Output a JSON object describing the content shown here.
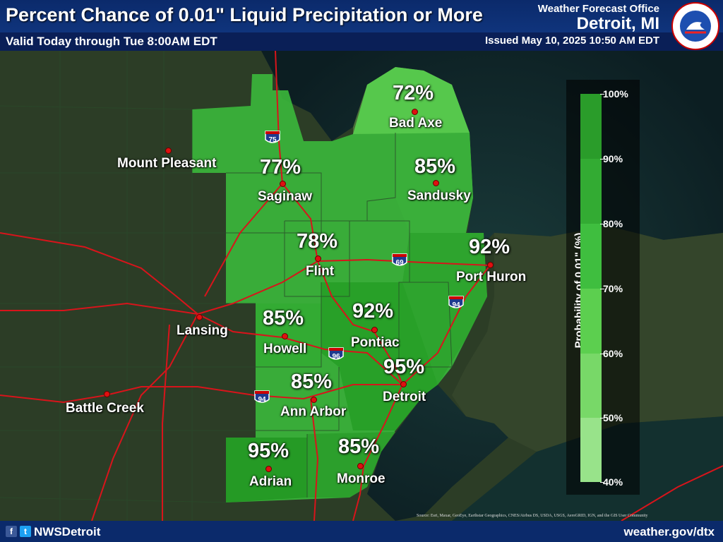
{
  "header": {
    "title": "Percent Chance of 0.01\" Liquid Precipitation or More",
    "valid": "Valid Today through Tue 8:00AM EDT",
    "office": "Weather Forecast Office",
    "city": "Detroit, MI",
    "issued": "Issued May 10, 2025 10:50 AM EDT",
    "logo_text": "NATIONAL WEATHER SERVICE"
  },
  "footer": {
    "handle": "NWSDetroit",
    "url": "weather.gov/dtx",
    "attribution": "Source: Esri, Maxar, GeoEye, Earthstar Geographics, CNES/Airbus DS, USDA, USGS, AeroGRID, IGN, and the GIS User Community"
  },
  "forecast_points": [
    {
      "city": "Bad Axe",
      "pct": "72%"
    },
    {
      "city": "Saginaw",
      "pct": "77%"
    },
    {
      "city": "Sandusky",
      "pct": "85%"
    },
    {
      "city": "Flint",
      "pct": "78%"
    },
    {
      "city": "Port Huron",
      "pct": "92%"
    },
    {
      "city": "Howell",
      "pct": "85%"
    },
    {
      "city": "Pontiac",
      "pct": "92%"
    },
    {
      "city": "Detroit",
      "pct": "95%"
    },
    {
      "city": "Ann Arbor",
      "pct": "85%"
    },
    {
      "city": "Adrian",
      "pct": "95%"
    },
    {
      "city": "Monroe",
      "pct": "85%"
    }
  ],
  "reference_cities": [
    "Mount Pleasant",
    "Lansing",
    "Battle Creek"
  ],
  "interstates": [
    "75",
    "69",
    "94",
    "96",
    "94"
  ],
  "legend": {
    "title": "Probability of 0.01\" (%)",
    "ticks": [
      "100%",
      "90%",
      "80%",
      "70%",
      "60%",
      "50%",
      "40%"
    ],
    "colors": [
      "#2a9c2a",
      "#33ab33",
      "#3fbe3f",
      "#5ccf4f",
      "#78d868",
      "#98e38a"
    ]
  }
}
